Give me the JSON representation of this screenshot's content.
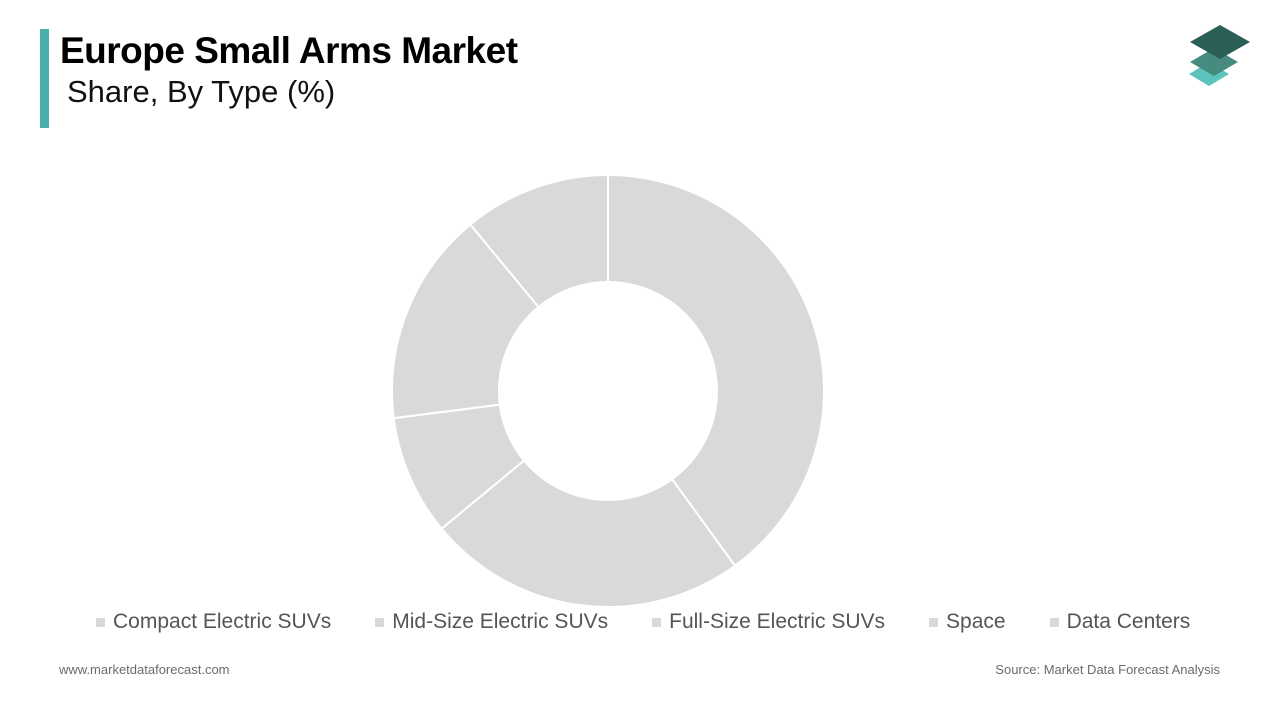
{
  "header": {
    "title": "Europe Small Arms Market",
    "subtitle": "Share, By Type (%)"
  },
  "colors": {
    "accent": "#4aaeab",
    "slice_fill": "#d9d9d9",
    "legend_swatch": "#d9d9d9",
    "logo_top": "#2b5f56",
    "logo_middle": "#468a80",
    "logo_bottom": "#5cc3bd"
  },
  "logo": {
    "icon": "stacked-layers-icon"
  },
  "chart_data": {
    "type": "pie",
    "donut": true,
    "title": "Europe Small Arms Market",
    "subtitle": "Share, By Type (%)",
    "categories": [
      "Compact Electric SUVs",
      "Mid-Size Electric SUVs",
      "Full-Size Electric SUVs",
      "Space",
      "Data Centers"
    ],
    "values": [
      40,
      24,
      9,
      16,
      11
    ],
    "legend_position": "bottom",
    "data_labels": false
  },
  "footer": {
    "website": "www.marketdataforecast.com",
    "source": "Source: Market Data Forecast Analysis"
  }
}
